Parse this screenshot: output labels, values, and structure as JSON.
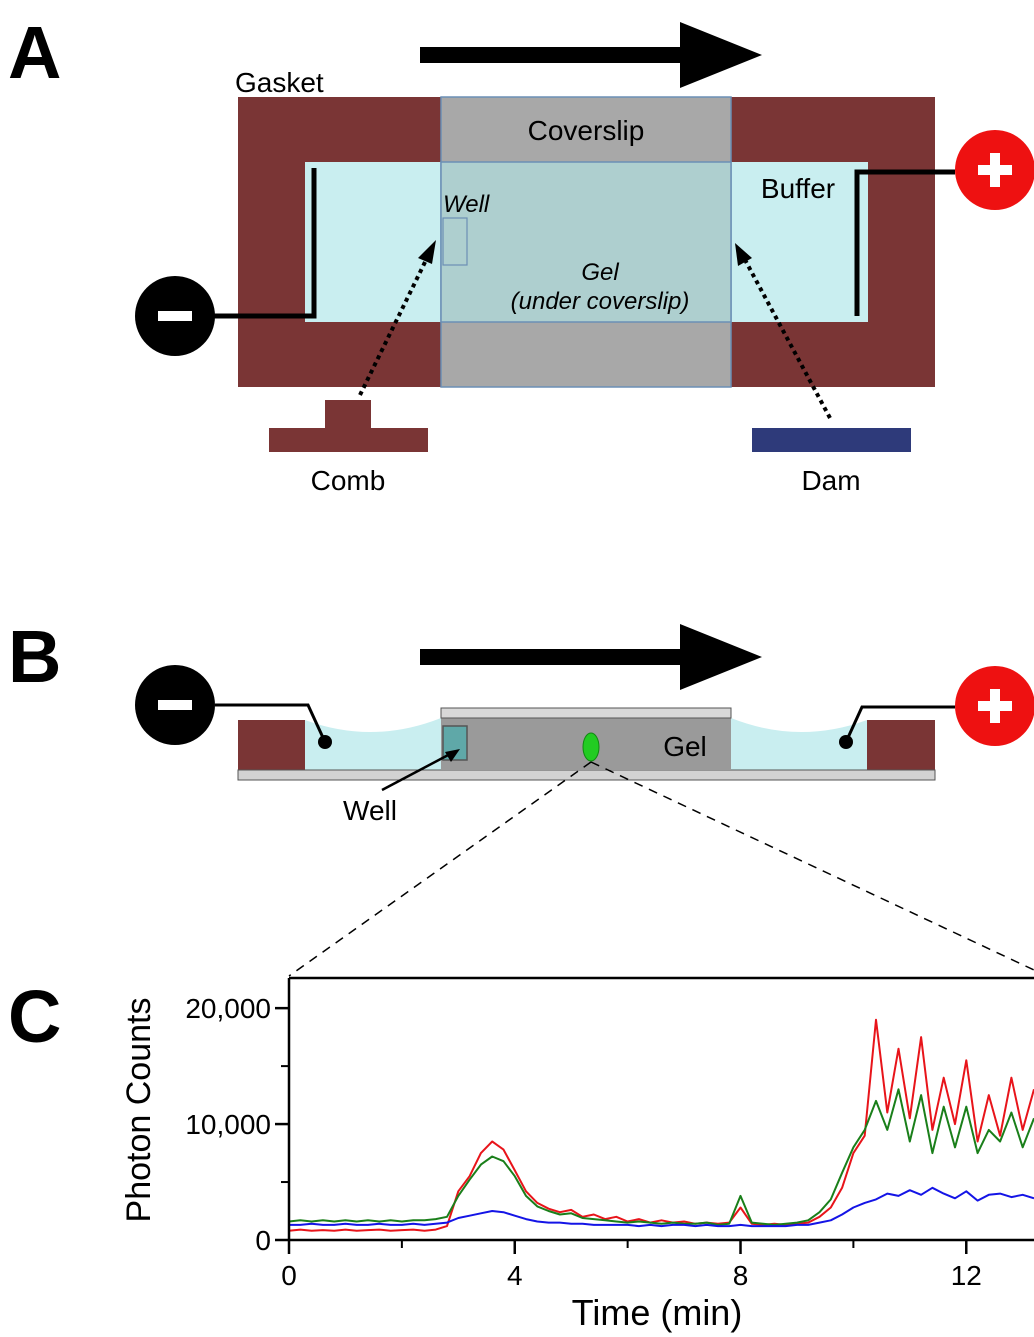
{
  "panel_a": {
    "letter": "A",
    "gasket": "Gasket",
    "coverslip": "Coverslip",
    "buffer": "Buffer",
    "well": "Well",
    "gel": "Gel",
    "gel_note": "(under coverslip)",
    "comb": "Comb",
    "dam": "Dam"
  },
  "panel_b": {
    "letter": "B",
    "gel": "Gel",
    "well": "Well"
  },
  "chart_data": {
    "type": "line",
    "letter": "C",
    "x_label": "Time (min)",
    "y_label": "Photon Counts",
    "x": [
      0,
      0.2,
      0.4,
      0.6,
      0.8,
      1.0,
      1.2,
      1.4,
      1.6,
      1.8,
      2.0,
      2.2,
      2.4,
      2.6,
      2.8,
      3.0,
      3.2,
      3.4,
      3.6,
      3.8,
      4.0,
      4.2,
      4.4,
      4.6,
      4.8,
      5.0,
      5.2,
      5.4,
      5.6,
      5.8,
      6.0,
      6.2,
      6.4,
      6.6,
      6.8,
      7.0,
      7.2,
      7.4,
      7.6,
      7.8,
      8.0,
      8.2,
      8.4,
      8.6,
      8.8,
      9.0,
      9.2,
      9.4,
      9.6,
      9.8,
      10.0,
      10.2,
      10.4,
      10.6,
      10.8,
      11.0,
      11.2,
      11.4,
      11.6,
      11.8,
      12.0,
      12.2,
      12.4,
      12.6,
      12.8,
      13.0,
      13.2
    ],
    "series": [
      {
        "color": "#e8141a",
        "values": [
          800,
          900,
          800,
          850,
          800,
          900,
          800,
          850,
          900,
          800,
          850,
          900,
          800,
          900,
          1200,
          4200,
          5500,
          7500,
          8500,
          7800,
          6000,
          4200,
          3200,
          2700,
          2400,
          2600,
          2000,
          2200,
          1800,
          2000,
          1600,
          1800,
          1500,
          1700,
          1500,
          1600,
          1400,
          1500,
          1400,
          1500,
          2800,
          1400,
          1300,
          1400,
          1300,
          1400,
          1500,
          2000,
          2800,
          4500,
          7500,
          9000,
          19000,
          11000,
          16500,
          10500,
          17500,
          9500,
          14000,
          10000,
          15500,
          8500,
          12500,
          9000,
          14000,
          9500,
          13000
        ]
      },
      {
        "color": "#1a7f1a",
        "values": [
          1600,
          1700,
          1600,
          1700,
          1600,
          1700,
          1600,
          1700,
          1600,
          1700,
          1600,
          1700,
          1700,
          1800,
          2000,
          3800,
          5200,
          6500,
          7200,
          6800,
          5500,
          3800,
          2900,
          2500,
          2200,
          2300,
          1900,
          1800,
          1700,
          1600,
          1500,
          1600,
          1500,
          1400,
          1500,
          1400,
          1400,
          1500,
          1300,
          1400,
          3800,
          1500,
          1400,
          1300,
          1400,
          1500,
          1700,
          2400,
          3500,
          5800,
          8000,
          9500,
          12000,
          9500,
          13000,
          8500,
          12500,
          7500,
          11500,
          8000,
          11500,
          7500,
          9500,
          8500,
          11000,
          8000,
          10500
        ]
      },
      {
        "color": "#1414e6",
        "values": [
          1300,
          1300,
          1400,
          1300,
          1300,
          1400,
          1300,
          1300,
          1400,
          1300,
          1300,
          1400,
          1300,
          1400,
          1500,
          1900,
          2100,
          2300,
          2500,
          2400,
          2100,
          1800,
          1600,
          1500,
          1500,
          1400,
          1400,
          1300,
          1300,
          1300,
          1300,
          1200,
          1300,
          1200,
          1300,
          1300,
          1200,
          1300,
          1200,
          1200,
          1300,
          1200,
          1200,
          1200,
          1200,
          1300,
          1300,
          1500,
          1700,
          2200,
          2800,
          3200,
          3500,
          4000,
          3800,
          4300,
          3900,
          4500,
          4000,
          3600,
          4200,
          3400,
          3900,
          4000,
          3700,
          3900,
          3600
        ]
      }
    ],
    "xlim": [
      0,
      13.2
    ],
    "xticks": [
      0,
      4,
      8,
      12
    ],
    "x_minor_ticks": [
      2,
      6,
      10
    ],
    "ylim": [
      0,
      22600
    ],
    "yticks": [
      0,
      {
        "value": 10000,
        "label": "10,000"
      },
      {
        "value": 20000,
        "label": "20,000"
      }
    ],
    "y_minor_ticks": [
      5000,
      15000
    ]
  }
}
